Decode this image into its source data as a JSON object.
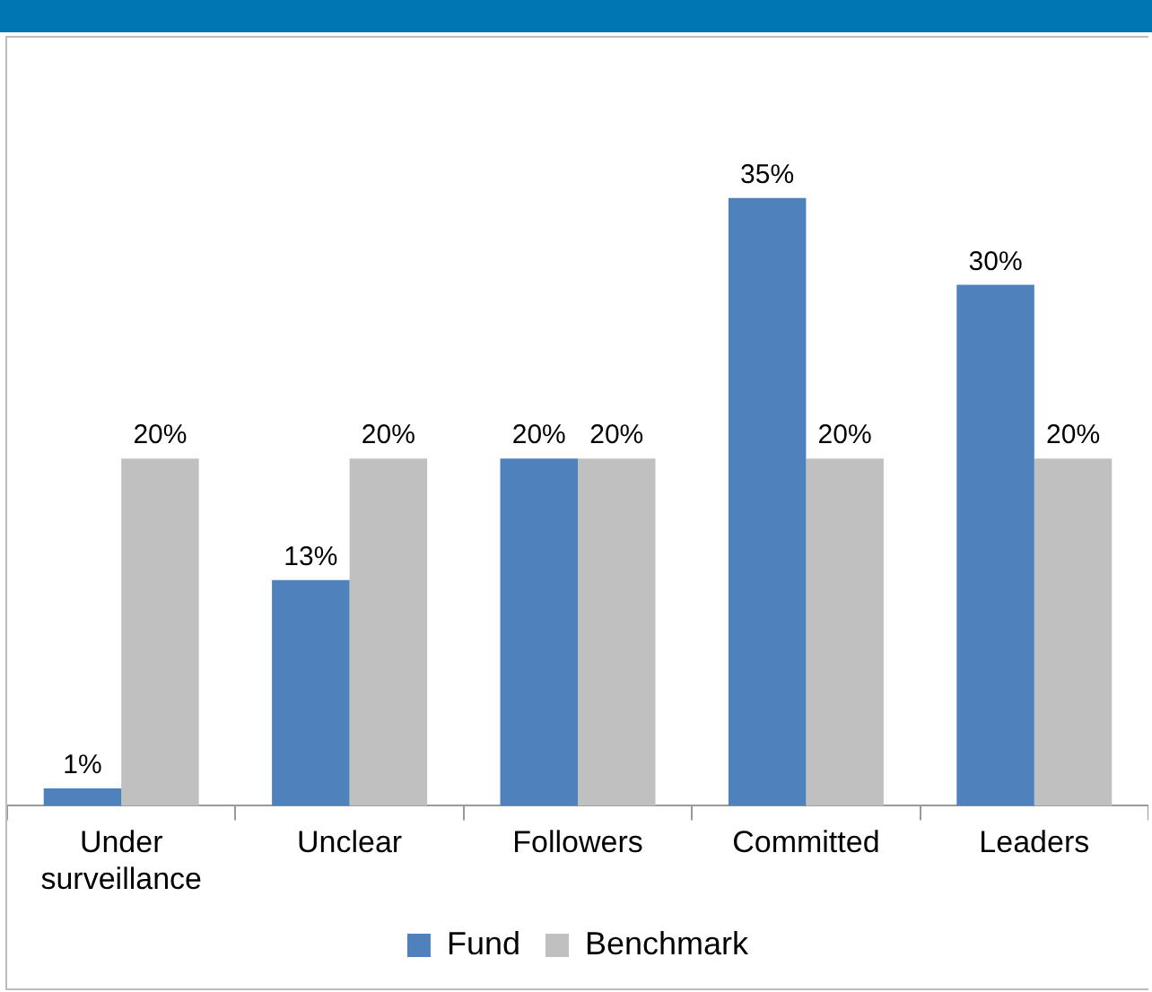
{
  "chart_data": {
    "type": "bar",
    "categories": [
      "Under surveillance",
      "Unclear",
      "Followers",
      "Committed",
      "Leaders"
    ],
    "series": [
      {
        "name": "Fund",
        "color": "#4f81bd",
        "values": [
          1,
          13,
          20,
          35,
          30
        ],
        "value_labels": [
          "1%",
          "13%",
          "20%",
          "35%",
          "30%"
        ]
      },
      {
        "name": "Benchmark",
        "color": "#c0c0c0",
        "values": [
          20,
          20,
          20,
          20,
          20
        ],
        "value_labels": [
          "20%",
          "20%",
          "20%",
          "20%",
          "20%"
        ]
      }
    ],
    "legend": "bottom",
    "grid": false
  }
}
